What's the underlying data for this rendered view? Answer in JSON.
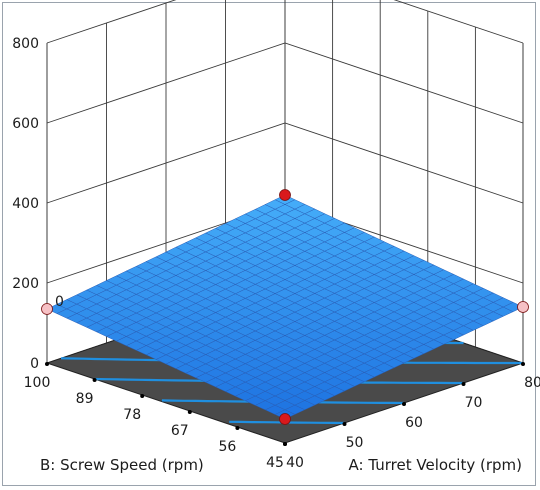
{
  "chart_data": {
    "type": "surface3d",
    "title": "",
    "x_axis": {
      "label": "A: Turret Velocity (rpm)",
      "range": [
        40,
        80
      ],
      "ticks": [
        "40",
        "50",
        "60",
        "70",
        "80"
      ]
    },
    "y_axis": {
      "label": "B: Screw Speed (rpm)",
      "range": [
        45,
        100
      ],
      "ticks": [
        "45",
        "56",
        "67",
        "78",
        "89",
        "100"
      ]
    },
    "z_axis": {
      "label": "",
      "range": [
        0,
        800
      ],
      "ticks": [
        "0",
        "200",
        "400",
        "600",
        "800"
      ],
      "extra_tick": "0"
    },
    "surface": {
      "corners": [
        {
          "A": 40,
          "B": 45,
          "z": 60
        },
        {
          "A": 80,
          "B": 45,
          "z": 140
        },
        {
          "A": 40,
          "B": 100,
          "z": 135
        },
        {
          "A": 80,
          "B": 100,
          "z": 220
        }
      ],
      "color": "#2f7fe6"
    },
    "design_points": [
      {
        "A": 40,
        "B": 45,
        "z": 60,
        "color": "#d9191c"
      },
      {
        "A": 80,
        "B": 100,
        "z": 220,
        "color": "#d9191c"
      },
      {
        "A": 40,
        "B": 100,
        "z": 135,
        "color": "#f6c1c5"
      },
      {
        "A": 80,
        "B": 45,
        "z": 140,
        "color": "#f6c1c5"
      }
    ],
    "contour_levels": [
      80,
      100,
      120,
      140,
      160,
      180,
      200
    ],
    "contour_color": "#1f8fe0",
    "floor_color": "#4a4a4a",
    "grid": true
  }
}
